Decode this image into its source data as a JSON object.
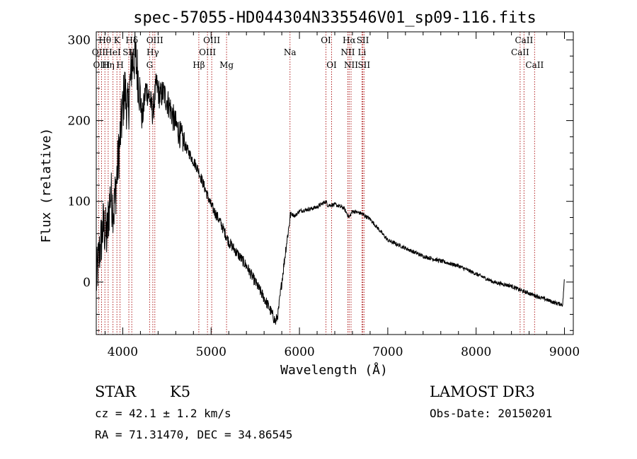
{
  "chart_data": {
    "type": "line",
    "title": "spec-57055-HD044304N335546V01_sp09-116.fits",
    "xlabel": "Wavelength (Å)",
    "ylabel": "Flux (relative)",
    "xlim": [
      3700,
      9100
    ],
    "ylim": [
      -65,
      310
    ],
    "xticks": [
      4000,
      5000,
      6000,
      7000,
      8000,
      9000
    ],
    "yticks": [
      0,
      100,
      200,
      300
    ],
    "minor_x_step": 200,
    "minor_y_step": 20,
    "series": [
      {
        "name": "flux",
        "x": [
          3700,
          3740,
          3780,
          3820,
          3860,
          3900,
          3940,
          3980,
          4020,
          4060,
          4100,
          4140,
          4180,
          4220,
          4260,
          4300,
          4340,
          4380,
          4420,
          4460,
          4500,
          4540,
          4580,
          4620,
          4700,
          4800,
          4850,
          4900,
          4950,
          5000,
          5100,
          5200,
          5300,
          5400,
          5500,
          5600,
          5650,
          5700,
          5730,
          5760,
          5800,
          5850,
          5880,
          5900,
          5950,
          6000,
          6100,
          6200,
          6300,
          6320,
          6400,
          6500,
          6563,
          6600,
          6700,
          6800,
          6900,
          7000,
          7200,
          7400,
          7600,
          7800,
          8000,
          8200,
          8400,
          8500,
          8600,
          8700,
          8800,
          8900,
          8980,
          9000
        ],
        "y": [
          0,
          40,
          70,
          55,
          110,
          90,
          140,
          190,
          240,
          210,
          270,
          280,
          250,
          200,
          240,
          230,
          210,
          245,
          230,
          235,
          225,
          215,
          200,
          190,
          170,
          150,
          140,
          125,
          110,
          95,
          75,
          50,
          35,
          20,
          0,
          -20,
          -30,
          -42,
          -50,
          -38,
          0,
          45,
          68,
          85,
          82,
          88,
          90,
          93,
          100,
          95,
          96,
          92,
          80,
          88,
          85,
          78,
          65,
          52,
          42,
          32,
          26,
          20,
          10,
          0,
          -5,
          -10,
          -14,
          -18,
          -22,
          -26,
          -28,
          5
        ]
      }
    ],
    "lines": [
      {
        "name": "Hθ",
        "x": 3798,
        "row": 0
      },
      {
        "name": "K",
        "x": 3934,
        "row": 0
      },
      {
        "name": "Hδ",
        "x": 4102,
        "row": 0
      },
      {
        "name": "OII",
        "x": 3727,
        "row": 1
      },
      {
        "name": "HeI",
        "x": 3889,
        "row": 1
      },
      {
        "name": "SII",
        "x": 4069,
        "row": 1
      },
      {
        "name": "OIII",
        "x": 3760,
        "row": 2
      },
      {
        "name": "Hη",
        "x": 3835,
        "row": 2
      },
      {
        "name": "H",
        "x": 3969,
        "row": 2
      },
      {
        "name": "OIII",
        "x": 4363,
        "row": 0
      },
      {
        "name": "Hγ",
        "x": 4340,
        "row": 1
      },
      {
        "name": "G",
        "x": 4304,
        "row": 2
      },
      {
        "name": "Hβ",
        "x": 4861,
        "row": 2
      },
      {
        "name": "OIII",
        "x": 5007,
        "row": 0
      },
      {
        "name": "OIII",
        "x": 4959,
        "row": 1
      },
      {
        "name": "Mg",
        "x": 5175,
        "row": 2
      },
      {
        "name": "Na",
        "x": 5893,
        "row": 1
      },
      {
        "name": "OI",
        "x": 6300,
        "row": 0
      },
      {
        "name": "OI",
        "x": 6364,
        "row": 2
      },
      {
        "name": "Hα",
        "x": 6563,
        "row": 0
      },
      {
        "name": "SII",
        "x": 6717,
        "row": 0
      },
      {
        "name": "NII",
        "x": 6548,
        "row": 1
      },
      {
        "name": "Li",
        "x": 6708,
        "row": 1
      },
      {
        "name": "NII",
        "x": 6584,
        "row": 2
      },
      {
        "name": "SII",
        "x": 6731,
        "row": 2
      },
      {
        "name": "CaII",
        "x": 8542,
        "row": 0
      },
      {
        "name": "CaII",
        "x": 8498,
        "row": 1
      },
      {
        "name": "CaII",
        "x": 8662,
        "row": 2
      }
    ]
  },
  "info": {
    "object_class": "STAR",
    "subclass": "K5",
    "survey": "LAMOST DR3",
    "cz": "cz = 42.1 ± 1.2 km/s",
    "obs_date": "Obs-Date: 20150201",
    "coords": "RA =  71.31470, DEC =  34.86545"
  },
  "colors": {
    "spectrum": "#000000",
    "line_marker": "#b22222",
    "axes": "#000000"
  }
}
